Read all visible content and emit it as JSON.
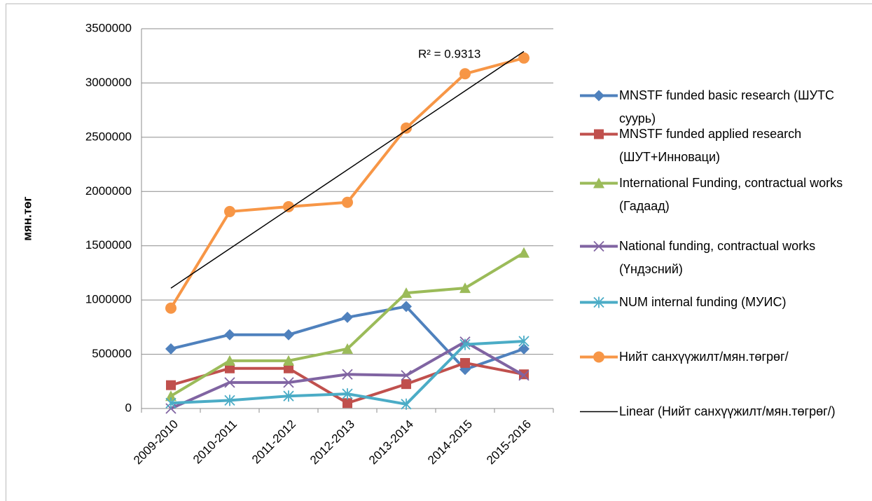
{
  "chart_data": {
    "type": "line",
    "y_label": "мян.төг",
    "categories": [
      "2009-2010",
      "2010-2011",
      "2011-2012",
      "2012-2013",
      "2013-2014",
      "2014-2015",
      "2015-2016"
    ],
    "series": [
      {
        "name": "MNSTF funded basic research (ШУТС суурь)",
        "color": "#4f81bd",
        "marker": "diamond",
        "values": [
          550000,
          680000,
          680000,
          840000,
          940000,
          360000,
          550000
        ]
      },
      {
        "name": "MNSTF funded applied research (ШУТ+Инноваци)",
        "color": "#c0504d",
        "marker": "square",
        "values": [
          215000,
          370000,
          370000,
          50000,
          225000,
          420000,
          315000
        ]
      },
      {
        "name": "International Funding, contractual works (Гадаад)",
        "color": "#9bbb59",
        "marker": "triangle",
        "values": [
          115000,
          440000,
          440000,
          550000,
          1065000,
          1110000,
          1435000
        ]
      },
      {
        "name": "National funding, contractual works (Үндэсний)",
        "color": "#8064a2",
        "marker": "x",
        "values": [
          0,
          240000,
          240000,
          315000,
          305000,
          615000,
          305000
        ]
      },
      {
        "name": "NUM internal funding (МУИС)",
        "color": "#4bacc6",
        "marker": "star",
        "values": [
          50000,
          75000,
          115000,
          135000,
          40000,
          590000,
          620000
        ]
      },
      {
        "name": "Нийт санхүүжилт/мян.төгрөг/",
        "color": "#f79646",
        "marker": "circle",
        "values": [
          925000,
          1815000,
          1860000,
          1900000,
          2585000,
          3085000,
          3230000
        ]
      }
    ],
    "trendline": {
      "name": "Linear (Нийт санхүүжилт/мян.төгрөг/)",
      "of_series": 5,
      "color": "#000000",
      "annotation": "R² = 0.9313"
    },
    "ylim": [
      0,
      3500000
    ],
    "yticks": [
      0,
      500000,
      1000000,
      1500000,
      2000000,
      2500000,
      3000000,
      3500000
    ],
    "grid": true,
    "legend": "right"
  }
}
